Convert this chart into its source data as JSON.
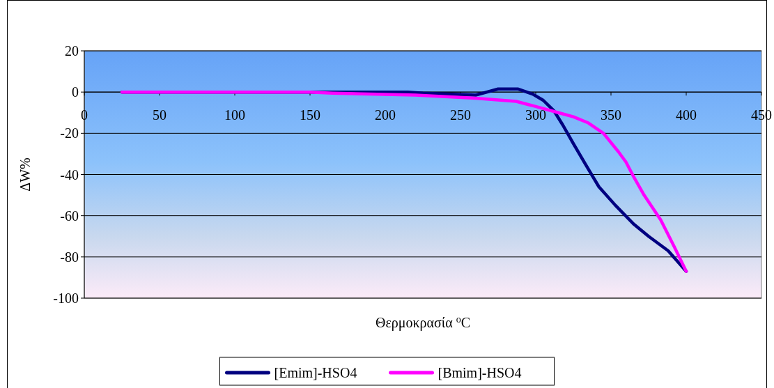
{
  "chart_data": {
    "type": "line",
    "xlabel": "Θερμοκρασία $^{o}$C",
    "ylabel": "ΔW%",
    "xlim": [
      0,
      450
    ],
    "ylim": [
      -100,
      20
    ],
    "xticks": [
      0,
      50,
      100,
      150,
      200,
      250,
      300,
      350,
      400,
      450
    ],
    "yticks": [
      -100,
      -80,
      -60,
      -40,
      -20,
      0,
      20
    ],
    "grid": "y",
    "legend": "bottom",
    "marker": "none",
    "line_style": "solid",
    "series": [
      {
        "name": "[Emim]-HSO4",
        "color": "#000080",
        "x": [
          25,
          100,
          150,
          215,
          225,
          260,
          275,
          288,
          298,
          305,
          312,
          318,
          325,
          333,
          342,
          353,
          365,
          375,
          388,
          400
        ],
        "values": [
          0,
          0,
          0,
          0,
          -0.5,
          -1.5,
          1.5,
          1.5,
          -1,
          -4,
          -9,
          -16,
          -25,
          -35,
          -46,
          -55,
          -64,
          -70,
          -77,
          -87
        ]
      },
      {
        "name": "[Bmim]-HSO4",
        "color": "#ff00ff",
        "x": [
          25,
          100,
          150,
          165,
          220,
          260,
          287,
          300,
          315,
          325,
          335,
          345,
          355,
          360,
          365,
          372,
          383,
          392,
          400
        ],
        "values": [
          0,
          0,
          0,
          -0.5,
          -1.5,
          -3,
          -4.5,
          -7,
          -10,
          -12,
          -15,
          -20,
          -29,
          -34,
          -41,
          -50,
          -62,
          -75,
          -87
        ]
      }
    ]
  }
}
